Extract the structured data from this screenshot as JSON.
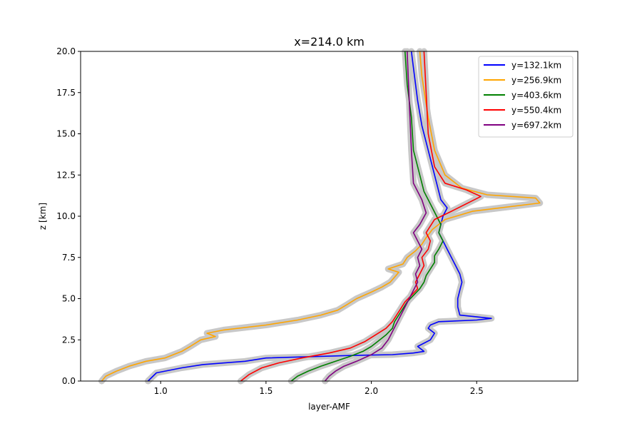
{
  "chart_data": {
    "type": "line",
    "title": "x=214.0 km",
    "xlabel": "layer-AMF",
    "ylabel": "z [km]",
    "xlim": [
      0.62,
      2.98
    ],
    "ylim": [
      0,
      20
    ],
    "xticks": [
      "1.0",
      "1.5",
      "2.0",
      "2.5"
    ],
    "xtick_values": [
      1.0,
      1.5,
      2.0,
      2.5
    ],
    "yticks": [
      "0.0",
      "2.5",
      "5.0",
      "7.5",
      "10.0",
      "12.5",
      "15.0",
      "17.5",
      "20.0"
    ],
    "ytick_values": [
      0,
      2.5,
      5,
      7.5,
      10,
      12.5,
      15,
      17.5,
      20
    ],
    "grid": false,
    "legend_position": "top-right",
    "band_color": "#c8c8c8",
    "series": [
      {
        "name": "y=132.1km",
        "color": "#0000ff",
        "x": [
          0.94,
          0.98,
          1.1,
          1.2,
          1.4,
          1.5,
          1.9,
          2.1,
          2.2,
          2.25,
          2.22,
          2.28,
          2.3,
          2.27,
          2.28,
          2.32,
          2.5,
          2.57,
          2.42,
          2.41,
          2.41,
          2.42,
          2.43,
          2.42,
          2.4,
          2.38,
          2.36,
          2.34,
          2.32,
          2.33,
          2.34,
          2.36,
          2.33,
          2.32,
          2.3,
          2.27,
          2.24,
          2.22,
          2.2,
          2.19
        ],
        "y": [
          0,
          0.5,
          0.8,
          1.0,
          1.2,
          1.4,
          1.55,
          1.6,
          1.7,
          1.8,
          2.1,
          2.5,
          2.9,
          3.2,
          3.4,
          3.6,
          3.7,
          3.8,
          4.0,
          4.5,
          5.0,
          5.5,
          6.0,
          6.5,
          7.0,
          7.5,
          8.0,
          8.5,
          9.0,
          9.5,
          10.0,
          10.5,
          11.0,
          11.5,
          12.5,
          14.0,
          15.5,
          17.0,
          19.0,
          20.0
        ]
      },
      {
        "name": "y=256.9km",
        "color": "#ffa500",
        "x": [
          0.72,
          0.74,
          0.79,
          0.85,
          0.93,
          1.02,
          1.1,
          1.14,
          1.19,
          1.26,
          1.22,
          1.3,
          1.5,
          1.65,
          1.76,
          1.84,
          1.88,
          1.93,
          2.0,
          2.05,
          2.09,
          2.11,
          2.13,
          2.08,
          2.15,
          2.17,
          2.21,
          2.24,
          2.26,
          2.29,
          2.35,
          2.48,
          2.8,
          2.78,
          2.55,
          2.43,
          2.35,
          2.3,
          2.27,
          2.24,
          2.23
        ],
        "y": [
          0,
          0.3,
          0.6,
          0.9,
          1.2,
          1.4,
          1.8,
          2.1,
          2.5,
          2.7,
          2.9,
          3.1,
          3.4,
          3.7,
          4.0,
          4.3,
          4.6,
          5.0,
          5.4,
          5.7,
          6.0,
          6.3,
          6.6,
          6.8,
          7.1,
          7.5,
          7.9,
          8.3,
          8.7,
          9.2,
          9.8,
          10.3,
          10.8,
          11.1,
          11.3,
          11.7,
          12.5,
          14.0,
          16.0,
          18.5,
          20.0
        ]
      },
      {
        "name": "y=403.6km",
        "color": "#008000",
        "x": [
          1.62,
          1.65,
          1.7,
          1.76,
          1.83,
          1.9,
          1.96,
          2.0,
          2.03,
          2.07,
          2.1,
          2.11,
          2.13,
          2.15,
          2.17,
          2.2,
          2.23,
          2.25,
          2.26,
          2.28,
          2.3,
          2.3,
          2.32,
          2.34,
          2.32,
          2.33,
          2.31,
          2.29,
          2.27,
          2.25,
          2.23,
          2.2,
          2.19,
          2.17,
          2.16
        ],
        "y": [
          0,
          0.3,
          0.6,
          0.9,
          1.2,
          1.5,
          1.8,
          2.1,
          2.4,
          2.8,
          3.2,
          3.6,
          4.0,
          4.4,
          4.8,
          5.2,
          5.6,
          6.0,
          6.4,
          6.8,
          7.2,
          7.6,
          8.0,
          8.5,
          9.0,
          9.5,
          10.0,
          10.5,
          11.0,
          11.5,
          12.5,
          14.0,
          16.0,
          18.0,
          20.0
        ]
      },
      {
        "name": "y=550.4km",
        "color": "#ff0000",
        "x": [
          1.38,
          1.42,
          1.48,
          1.56,
          1.67,
          1.8,
          1.9,
          1.97,
          2.02,
          2.07,
          2.1,
          2.12,
          2.14,
          2.16,
          2.19,
          2.22,
          2.21,
          2.23,
          2.25,
          2.24,
          2.27,
          2.28,
          2.26,
          2.3,
          2.38,
          2.52,
          2.45,
          2.35,
          2.3,
          2.27,
          2.26,
          2.25
        ],
        "y": [
          0,
          0.4,
          0.8,
          1.1,
          1.4,
          1.7,
          2.0,
          2.4,
          2.8,
          3.2,
          3.6,
          4.0,
          4.4,
          4.8,
          5.2,
          5.6,
          6.0,
          6.5,
          7.0,
          7.5,
          8.0,
          8.5,
          9.0,
          9.8,
          10.3,
          11.2,
          11.6,
          12.0,
          13.0,
          15.0,
          17.5,
          20.0
        ]
      },
      {
        "name": "y=697.2km",
        "color": "#800080",
        "x": [
          1.78,
          1.8,
          1.83,
          1.87,
          1.93,
          2.0,
          2.05,
          2.08,
          2.1,
          2.12,
          2.14,
          2.16,
          2.18,
          2.2,
          2.22,
          2.21,
          2.23,
          2.22,
          2.24,
          2.22,
          2.2,
          2.23,
          2.26,
          2.24,
          2.2,
          2.19,
          2.18,
          2.17
        ],
        "y": [
          0,
          0.3,
          0.6,
          0.9,
          1.2,
          1.6,
          2.0,
          2.5,
          3.0,
          3.5,
          4.0,
          4.5,
          5.0,
          5.5,
          6.0,
          6.5,
          7.0,
          7.5,
          8.0,
          8.5,
          9.0,
          9.5,
          10.2,
          11.0,
          12.0,
          14.0,
          17.0,
          20.0
        ]
      }
    ]
  }
}
